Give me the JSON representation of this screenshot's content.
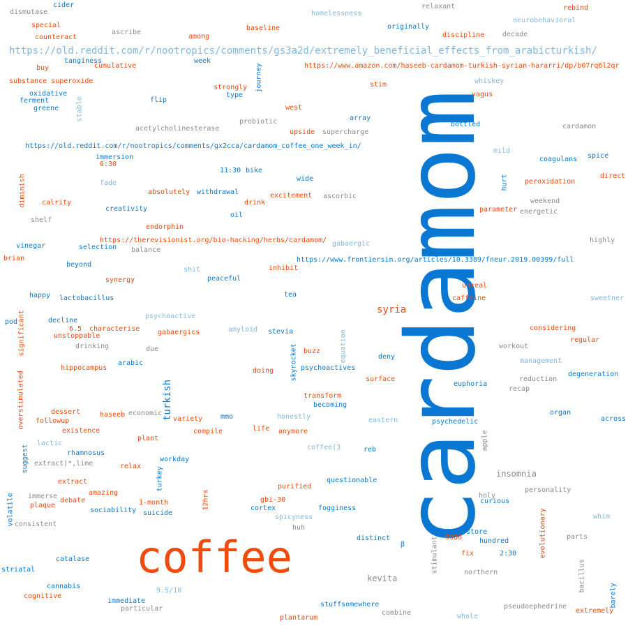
{
  "palette": {
    "blue": "#0a78d2",
    "orange": "#f04a0c",
    "gray": "#8a8a8a",
    "light": "#80b8e0"
  },
  "words": [
    {
      "text": "cardamom",
      "color": "#0a78d2",
      "rotated": true
    },
    {
      "text": "coffee",
      "color": "#f04a0c",
      "rotated": false
    },
    {
      "text": "https://old.reddit.com/r/nootropics/comments/gs3a2d/extremely_beneficial_effects_from_arabicturkish/",
      "color": "#80b8e0",
      "rotated": false
    },
    {
      "text": "https://www.amazon.com/haseeb-cardamom-turkish-syrian-hararri/dp/b07rq6l2qr",
      "color": "#f04a0c",
      "rotated": false
    },
    {
      "text": "https://old.reddit.com/r/nootropics/comments/gx2cca/cardamom_coffee_one_week_in/",
      "color": "#0a78d2",
      "rotated": false
    },
    {
      "text": "https://therevisionist.org/bio-hacking/herbs/cardamom/",
      "color": "#f04a0c",
      "rotated": false
    },
    {
      "text": "https://www.frontiersin.org/articles/10.3389/fneur.2019.00399/full",
      "color": "#0a78d2",
      "rotated": false
    },
    {
      "text": "syria",
      "color": "#f04a0c",
      "rotated": false
    },
    {
      "text": "turkish",
      "color": "#0a78d2",
      "rotated": true
    },
    {
      "text": "insomnia",
      "color": "#8a8a8a",
      "rotated": false
    },
    {
      "text": "kevita",
      "color": "#8a8a8a",
      "rotated": false
    },
    {
      "text": "dismutase",
      "color": "#8a8a8a",
      "rotated": false
    },
    {
      "text": "cider",
      "color": "#0a78d2",
      "rotated": false
    },
    {
      "text": "homelessness",
      "color": "#80b8e0",
      "rotated": false
    },
    {
      "text": "relaxant",
      "color": "#8a8a8a",
      "rotated": false
    },
    {
      "text": "rebind",
      "color": "#f04a0c",
      "rotated": false
    },
    {
      "text": "special",
      "color": "#f04a0c",
      "rotated": false
    },
    {
      "text": "ascribe",
      "color": "#8a8a8a",
      "rotated": false
    },
    {
      "text": "baseline",
      "color": "#f04a0c",
      "rotated": false
    },
    {
      "text": "originally",
      "color": "#0a78d2",
      "rotated": false
    },
    {
      "text": "neurobehavioral",
      "color": "#80b8e0",
      "rotated": false
    },
    {
      "text": "counteract",
      "color": "#f04a0c",
      "rotated": false
    },
    {
      "text": "among",
      "color": "#f04a0c",
      "rotated": false
    },
    {
      "text": "discipline",
      "color": "#f04a0c",
      "rotated": false
    },
    {
      "text": "decade",
      "color": "#8a8a8a",
      "rotated": false
    },
    {
      "text": "tanginess",
      "color": "#0a78d2",
      "rotated": false
    },
    {
      "text": "week",
      "color": "#0a78d2",
      "rotated": false
    },
    {
      "text": "journey",
      "color": "#0a78d2",
      "rotated": true
    },
    {
      "text": "buy",
      "color": "#f04a0c",
      "rotated": false
    },
    {
      "text": "cumulative",
      "color": "#f04a0c",
      "rotated": false
    },
    {
      "text": "substance superoxide",
      "color": "#f04a0c",
      "rotated": false
    },
    {
      "text": "whiskey",
      "color": "#80b8e0",
      "rotated": false
    },
    {
      "text": "stim",
      "color": "#f04a0c",
      "rotated": false
    },
    {
      "text": "strongly",
      "color": "#f04a0c",
      "rotated": false
    },
    {
      "text": "oxidative",
      "color": "#0a78d2",
      "rotated": false
    },
    {
      "text": "ferment",
      "color": "#0a78d2",
      "rotated": false
    },
    {
      "text": "stable",
      "color": "#80b8e0",
      "rotated": true
    },
    {
      "text": "type",
      "color": "#0a78d2",
      "rotated": false
    },
    {
      "text": "vagus",
      "color": "#f04a0c",
      "rotated": false
    },
    {
      "text": "flip",
      "color": "#0a78d2",
      "rotated": false
    },
    {
      "text": "greene",
      "color": "#0a78d2",
      "rotated": false
    },
    {
      "text": "west",
      "color": "#f04a0c",
      "rotated": false
    },
    {
      "text": "array",
      "color": "#0a78d2",
      "rotated": false
    },
    {
      "text": "probiotic",
      "color": "#8a8a8a",
      "rotated": false
    },
    {
      "text": "bottled",
      "color": "#0a78d2",
      "rotated": false
    },
    {
      "text": "cardamon",
      "color": "#8a8a8a",
      "rotated": false
    },
    {
      "text": "acetylcholinesterase",
      "color": "#8a8a8a",
      "rotated": false
    },
    {
      "text": "upside",
      "color": "#f04a0c",
      "rotated": false
    },
    {
      "text": "supercharge",
      "color": "#8a8a8a",
      "rotated": false
    },
    {
      "text": "mild",
      "color": "#80b8e0",
      "rotated": false
    },
    {
      "text": "immersion",
      "color": "#0a78d2",
      "rotated": false
    },
    {
      "text": "coagulans",
      "color": "#0a78d2",
      "rotated": false
    },
    {
      "text": "spice",
      "color": "#0a78d2",
      "rotated": false
    },
    {
      "text": "6:30",
      "color": "#f04a0c",
      "rotated": false
    },
    {
      "text": "11:30",
      "color": "#0a78d2",
      "rotated": false
    },
    {
      "text": "bike",
      "color": "#0a78d2",
      "rotated": false
    },
    {
      "text": "diminish",
      "color": "#f04a0c",
      "rotated": true
    },
    {
      "text": "wide",
      "color": "#0a78d2",
      "rotated": false
    },
    {
      "text": "hurt",
      "color": "#0a78d2",
      "rotated": true
    },
    {
      "text": "direct",
      "color": "#f04a0c",
      "rotated": false
    },
    {
      "text": "fade",
      "color": "#80b8e0",
      "rotated": false
    },
    {
      "text": "peroxidation",
      "color": "#f04a0c",
      "rotated": false
    },
    {
      "text": "absolutely",
      "color": "#f04a0c",
      "rotated": false
    },
    {
      "text": "withdrawal",
      "color": "#0a78d2",
      "rotated": false
    },
    {
      "text": "excitement",
      "color": "#f04a0c",
      "rotated": false
    },
    {
      "text": "ascorbic",
      "color": "#8a8a8a",
      "rotated": false
    },
    {
      "text": "weekend",
      "color": "#8a8a8a",
      "rotated": false
    },
    {
      "text": "calrity",
      "color": "#f04a0c",
      "rotated": false
    },
    {
      "text": "drink",
      "color": "#f04a0c",
      "rotated": false
    },
    {
      "text": "creativity",
      "color": "#0a78d2",
      "rotated": false
    },
    {
      "text": "parameter",
      "color": "#f04a0c",
      "rotated": false
    },
    {
      "text": "energetic",
      "color": "#8a8a8a",
      "rotated": false
    },
    {
      "text": "oil",
      "color": "#0a78d2",
      "rotated": false
    },
    {
      "text": "shelf",
      "color": "#8a8a8a",
      "rotated": false
    },
    {
      "text": "endorphin",
      "color": "#f04a0c",
      "rotated": false
    },
    {
      "text": "highly",
      "color": "#8a8a8a",
      "rotated": false
    },
    {
      "text": "vinegar",
      "color": "#0a78d2",
      "rotated": false
    },
    {
      "text": "selection",
      "color": "#0a78d2",
      "rotated": false
    },
    {
      "text": "balance",
      "color": "#8a8a8a",
      "rotated": false
    },
    {
      "text": "gabaergic",
      "color": "#80b8e0",
      "rotated": false
    },
    {
      "text": "brian",
      "color": "#f04a0c",
      "rotated": false
    },
    {
      "text": "beyond",
      "color": "#0a78d2",
      "rotated": false
    },
    {
      "text": "shit",
      "color": "#80b8e0",
      "rotated": false
    },
    {
      "text": "inhibit",
      "color": "#f04a0c",
      "rotated": false
    },
    {
      "text": "synergy",
      "color": "#f04a0c",
      "rotated": false
    },
    {
      "text": "peaceful",
      "color": "#0a78d2",
      "rotated": false
    },
    {
      "text": "unreal",
      "color": "#f04a0c",
      "rotated": false
    },
    {
      "text": "happy",
      "color": "#0a78d2",
      "rotated": false
    },
    {
      "text": "lactobacillus",
      "color": "#0a78d2",
      "rotated": false
    },
    {
      "text": "tea",
      "color": "#0a78d2",
      "rotated": false
    },
    {
      "text": "caffeine",
      "color": "#f04a0c",
      "rotated": false
    },
    {
      "text": "sweetner",
      "color": "#80b8e0",
      "rotated": false
    },
    {
      "text": "significant",
      "color": "#f04a0c",
      "rotated": true
    },
    {
      "text": "psychoactive",
      "color": "#80b8e0",
      "rotated": false
    },
    {
      "text": "pod",
      "color": "#0a78d2",
      "rotated": false
    },
    {
      "text": "decline",
      "color": "#0a78d2",
      "rotated": false
    },
    {
      "text": "6.5",
      "color": "#f04a0c",
      "rotated": false
    },
    {
      "text": "characterise",
      "color": "#f04a0c",
      "rotated": false
    },
    {
      "text": "amyloid",
      "color": "#80b8e0",
      "rotated": false
    },
    {
      "text": "stevia",
      "color": "#0a78d2",
      "rotated": false
    },
    {
      "text": "equation",
      "color": "#80b8e0",
      "rotated": true
    },
    {
      "text": "considering",
      "color": "#f04a0c",
      "rotated": false
    },
    {
      "text": "unstoppable",
      "color": "#f04a0c",
      "rotated": false
    },
    {
      "text": "gabaergics",
      "color": "#f04a0c",
      "rotated": false
    },
    {
      "text": "regular",
      "color": "#f04a0c",
      "rotated": false
    },
    {
      "text": "drinking",
      "color": "#8a8a8a",
      "rotated": false
    },
    {
      "text": "due",
      "color": "#8a8a8a",
      "rotated": false
    },
    {
      "text": "skyrocket",
      "color": "#0a78d2",
      "rotated": true
    },
    {
      "text": "buzz",
      "color": "#f04a0c",
      "rotated": false
    },
    {
      "text": "workout",
      "color": "#8a8a8a",
      "rotated": false
    },
    {
      "text": "deny",
      "color": "#0a78d2",
      "rotated": false
    },
    {
      "text": "arabic",
      "color": "#0a78d2",
      "rotated": false
    },
    {
      "text": "management",
      "color": "#80b8e0",
      "rotated": false
    },
    {
      "text": "hippocampus",
      "color": "#f04a0c",
      "rotated": false
    },
    {
      "text": "psychoactives",
      "color": "#0a78d2",
      "rotated": false
    },
    {
      "text": "doing",
      "color": "#f04a0c",
      "rotated": false
    },
    {
      "text": "degeneration",
      "color": "#0a78d2",
      "rotated": false
    },
    {
      "text": "overstimulated",
      "color": "#f04a0c",
      "rotated": true
    },
    {
      "text": "surface",
      "color": "#f04a0c",
      "rotated": false
    },
    {
      "text": "reduction",
      "color": "#8a8a8a",
      "rotated": false
    },
    {
      "text": "euphoria",
      "color": "#0a78d2",
      "rotated": false
    },
    {
      "text": "recap",
      "color": "#8a8a8a",
      "rotated": false
    },
    {
      "text": "transform",
      "color": "#f04a0c",
      "rotated": false
    },
    {
      "text": "dessert",
      "color": "#f04a0c",
      "rotated": false
    },
    {
      "text": "becoming",
      "color": "#0a78d2",
      "rotated": false
    },
    {
      "text": "haseeb",
      "color": "#f04a0c",
      "rotated": false
    },
    {
      "text": "economic",
      "color": "#8a8a8a",
      "rotated": false
    },
    {
      "text": "variety",
      "color": "#f04a0c",
      "rotated": false
    },
    {
      "text": "mmo",
      "color": "#0a78d2",
      "rotated": false
    },
    {
      "text": "organ",
      "color": "#0a78d2",
      "rotated": false
    },
    {
      "text": "followup",
      "color": "#f04a0c",
      "rotated": false
    },
    {
      "text": "honestly",
      "color": "#80b8e0",
      "rotated": false
    },
    {
      "text": "eastern",
      "color": "#80b8e0",
      "rotated": false
    },
    {
      "text": "psychedelic",
      "color": "#0a78d2",
      "rotated": false
    },
    {
      "text": "across",
      "color": "#0a78d2",
      "rotated": false
    },
    {
      "text": "existence",
      "color": "#f04a0c",
      "rotated": false
    },
    {
      "text": "compile",
      "color": "#f04a0c",
      "rotated": false
    },
    {
      "text": "life",
      "color": "#f04a0c",
      "rotated": false
    },
    {
      "text": "anymore",
      "color": "#f04a0c",
      "rotated": false
    },
    {
      "text": "apple",
      "color": "#8a8a8a",
      "rotated": true
    },
    {
      "text": "plant",
      "color": "#f04a0c",
      "rotated": false
    },
    {
      "text": "suggest",
      "color": "#0a78d2",
      "rotated": true
    },
    {
      "text": "lactic",
      "color": "#80b8e0",
      "rotated": false
    },
    {
      "text": "coffee(3",
      "color": "#80b8e0",
      "rotated": false
    },
    {
      "text": "reb",
      "color": "#0a78d2",
      "rotated": false
    },
    {
      "text": "rhamnosus",
      "color": "#0a78d2",
      "rotated": false
    },
    {
      "text": "workday",
      "color": "#0a78d2",
      "rotated": false
    },
    {
      "text": "extract)*,lime",
      "color": "#8a8a8a",
      "rotated": false
    },
    {
      "text": "relax",
      "color": "#f04a0c",
      "rotated": false
    },
    {
      "text": "turkey",
      "color": "#0a78d2",
      "rotated": true
    },
    {
      "text": "extract",
      "color": "#f04a0c",
      "rotated": false
    },
    {
      "text": "questionable",
      "color": "#0a78d2",
      "rotated": false
    },
    {
      "text": "purified",
      "color": "#f04a0c",
      "rotated": false
    },
    {
      "text": "personality",
      "color": "#8a8a8a",
      "rotated": false
    },
    {
      "text": "amazing",
      "color": "#f04a0c",
      "rotated": false
    },
    {
      "text": "holy",
      "color": "#8a8a8a",
      "rotated": false
    },
    {
      "text": "immerse",
      "color": "#8a8a8a",
      "rotated": false
    },
    {
      "text": "volatile",
      "color": "#0a78d2",
      "rotated": true
    },
    {
      "text": "debate",
      "color": "#f04a0c",
      "rotated": false
    },
    {
      "text": "12hrs",
      "color": "#f04a0c",
      "rotated": true
    },
    {
      "text": "gbi-30",
      "color": "#f04a0c",
      "rotated": false
    },
    {
      "text": "curious",
      "color": "#0a78d2",
      "rotated": false
    },
    {
      "text": "plaque",
      "color": "#f04a0c",
      "rotated": false
    },
    {
      "text": "1-month",
      "color": "#f04a0c",
      "rotated": false
    },
    {
      "text": "cortex",
      "color": "#0a78d2",
      "rotated": false
    },
    {
      "text": "fogginess",
      "color": "#0a78d2",
      "rotated": false
    },
    {
      "text": "sociability",
      "color": "#0a78d2",
      "rotated": false
    },
    {
      "text": "suicide",
      "color": "#0a78d2",
      "rotated": false
    },
    {
      "text": "evolutionary",
      "color": "#f04a0c",
      "rotated": true
    },
    {
      "text": "whim",
      "color": "#80b8e0",
      "rotated": false
    },
    {
      "text": "spicyness",
      "color": "#80b8e0",
      "rotated": false
    },
    {
      "text": "consistent",
      "color": "#8a8a8a",
      "rotated": false
    },
    {
      "text": "huh",
      "color": "#8a8a8a",
      "rotated": false
    },
    {
      "text": "store",
      "color": "#0a78d2",
      "rotated": false
    },
    {
      "text": "6086",
      "color": "#f04a0c",
      "rotated": false
    },
    {
      "text": "distinct",
      "color": "#0a78d2",
      "rotated": false
    },
    {
      "text": "hundred",
      "color": "#0a78d2",
      "rotated": false
    },
    {
      "text": "parts",
      "color": "#8a8a8a",
      "rotated": false
    },
    {
      "text": "β",
      "color": "#0a78d2",
      "rotated": false
    },
    {
      "text": "stimulant",
      "color": "#8a8a8a",
      "rotated": true
    },
    {
      "text": "fix",
      "color": "#f04a0c",
      "rotated": false
    },
    {
      "text": "2:30",
      "color": "#0a78d2",
      "rotated": false
    },
    {
      "text": "catalase",
      "color": "#0a78d2",
      "rotated": false
    },
    {
      "text": "bacillus",
      "color": "#8a8a8a",
      "rotated": true
    },
    {
      "text": "striatal",
      "color": "#0a78d2",
      "rotated": false
    },
    {
      "text": "northern",
      "color": "#8a8a8a",
      "rotated": false
    },
    {
      "text": "cannabis",
      "color": "#0a78d2",
      "rotated": false
    },
    {
      "text": "9.5/10",
      "color": "#80b8e0",
      "rotated": false
    },
    {
      "text": "barely",
      "color": "#0a78d2",
      "rotated": true
    },
    {
      "text": "cognitive",
      "color": "#f04a0c",
      "rotated": false
    },
    {
      "text": "immediate",
      "color": "#0a78d2",
      "rotated": false
    },
    {
      "text": "stuffsomewhere",
      "color": "#0a78d2",
      "rotated": false
    },
    {
      "text": "pseudoephedrine",
      "color": "#8a8a8a",
      "rotated": false
    },
    {
      "text": "particular",
      "color": "#8a8a8a",
      "rotated": false
    },
    {
      "text": "extremely",
      "color": "#f04a0c",
      "rotated": false
    },
    {
      "text": "combine",
      "color": "#8a8a8a",
      "rotated": false
    },
    {
      "text": "plantarum",
      "color": "#f04a0c",
      "rotated": false
    },
    {
      "text": "whole",
      "color": "#80b8e0",
      "rotated": false
    }
  ]
}
